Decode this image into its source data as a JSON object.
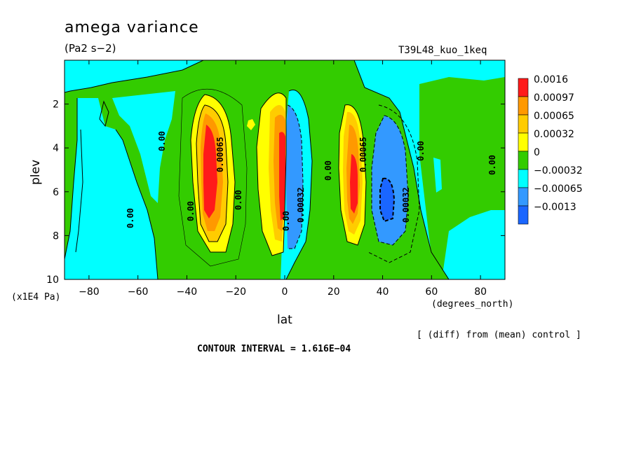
{
  "chart_data": {
    "type": "heatmap",
    "title": "amega variance",
    "subtitle": "(Pa2 s−2)",
    "run_label": "T39L48_kuo_1keq",
    "xlabel": "lat",
    "x_units": "(degrees_north)",
    "ylabel": "plev",
    "y_units": "(x1E4 Pa)",
    "xlim": [
      -90,
      90
    ],
    "ylim": [
      10,
      0
    ],
    "x_ticks": [
      "−80",
      "−60",
      "−40",
      "−20",
      "0",
      "20",
      "40",
      "60",
      "80"
    ],
    "y_ticks": [
      "2",
      "4",
      "6",
      "8",
      "10"
    ],
    "contour_interval_text": "CONTOUR INTERVAL = 1.616E−04",
    "diff_note": "[ (diff) from (mean) control ]",
    "legend": {
      "levels": [
        "0.0016",
        "0.00097",
        "0.00065",
        "0.00032",
        "0",
        "−0.00032",
        "−0.00065",
        "−0.0013"
      ],
      "colors": [
        "#ff1a1a",
        "#ff9900",
        "#ffcc00",
        "#ffff00",
        "#33cc00",
        "#00ffff",
        "#3399ff",
        "#1a66ff"
      ]
    },
    "contour_labels": [
      "0.00",
      "0.00",
      "0.00",
      "0.00",
      "0.00",
      "0.00",
      "0.00",
      "0.00032",
      "0.00032",
      "0.00065",
      "0.00065",
      "0.00"
    ],
    "features": [
      {
        "lat": -30,
        "plev": 5.0,
        "value": 0.0016
      },
      {
        "lat": -3,
        "plev": 5.5,
        "value": 0.0016
      },
      {
        "lat": 28,
        "plev": 5.8,
        "value": 0.0016
      },
      {
        "lat": 5,
        "plev": 5.0,
        "value": -0.00065
      },
      {
        "lat": 42,
        "plev": 6.5,
        "value": -0.0013
      },
      {
        "lat": -75,
        "plev": 4.0,
        "value": -0.00032
      },
      {
        "lat": 70,
        "plev": 4.0,
        "value": -0.00032
      }
    ]
  }
}
